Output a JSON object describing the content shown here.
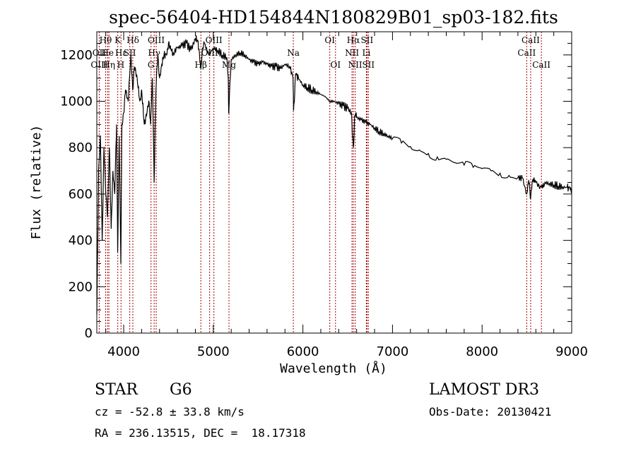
{
  "chart_data": {
    "type": "line",
    "title": "spec-56404-HD154844N180829B01_sp03-182.fits",
    "xlabel": "Wavelength (Å)",
    "ylabel": "Flux (relative)",
    "xlim": [
      3700,
      9000
    ],
    "ylim": [
      0,
      1300
    ],
    "xticks": [
      4000,
      5000,
      6000,
      7000,
      8000,
      9000
    ],
    "yticks": [
      0,
      200,
      400,
      600,
      800,
      1000,
      1200
    ],
    "grid": false,
    "series": [
      {
        "name": "spectrum",
        "x": [
          3700,
          3720,
          3740,
          3760,
          3780,
          3800,
          3820,
          3840,
          3860,
          3880,
          3900,
          3920,
          3933,
          3950,
          3968,
          3980,
          4000,
          4020,
          4050,
          4080,
          4101,
          4120,
          4150,
          4180,
          4200,
          4230,
          4260,
          4280,
          4300,
          4320,
          4340,
          4360,
          4380,
          4400,
          4420,
          4450,
          4480,
          4500,
          4530,
          4560,
          4600,
          4650,
          4700,
          4750,
          4800,
          4830,
          4861,
          4880,
          4900,
          4950,
          5000,
          5050,
          5100,
          5150,
          5167,
          5172,
          5183,
          5200,
          5250,
          5300,
          5350,
          5400,
          5450,
          5500,
          5550,
          5600,
          5650,
          5700,
          5750,
          5800,
          5850,
          5890,
          5896,
          5920,
          5950,
          6000,
          6050,
          6100,
          6150,
          6200,
          6250,
          6300,
          6350,
          6400,
          6450,
          6500,
          6540,
          6563,
          6580,
          6600,
          6650,
          6700,
          6750,
          6800,
          6850,
          6900,
          6950,
          7000,
          7100,
          7200,
          7300,
          7400,
          7500,
          7600,
          7700,
          7800,
          7900,
          8000,
          8100,
          8200,
          8300,
          8400,
          8450,
          8498,
          8520,
          8542,
          8560,
          8600,
          8662,
          8700,
          8750,
          8800,
          8850,
          8900,
          8950,
          8980,
          9000
        ],
        "values": [
          80,
          700,
          850,
          400,
          800,
          600,
          500,
          800,
          450,
          700,
          600,
          900,
          350,
          850,
          300,
          900,
          950,
          1050,
          1000,
          1200,
          1050,
          1150,
          1100,
          1000,
          1050,
          900,
          950,
          1000,
          900,
          1100,
          650,
          1050,
          1200,
          1100,
          1150,
          1200,
          1200,
          1250,
          1220,
          1200,
          1230,
          1240,
          1250,
          1220,
          1270,
          1260,
          1140,
          1230,
          1250,
          1200,
          1230,
          1220,
          1200,
          1190,
          1100,
          950,
          1050,
          1180,
          1200,
          1210,
          1200,
          1180,
          1170,
          1160,
          1170,
          1160,
          1150,
          1150,
          1140,
          1160,
          1150,
          1100,
          960,
          1120,
          1100,
          1070,
          1060,
          1050,
          1040,
          1030,
          1020,
          1000,
          1000,
          990,
          980,
          970,
          950,
          800,
          940,
          930,
          920,
          910,
          900,
          885,
          870,
          860,
          850,
          840,
          820,
          805,
          790,
          775,
          760,
          750,
          735,
          725,
          715,
          710,
          700,
          690,
          680,
          670,
          668,
          600,
          660,
          580,
          655,
          650,
          630,
          650,
          645,
          640,
          635,
          630,
          628,
          625,
          620
        ]
      }
    ],
    "lines": [
      {
        "label": "Hθ",
        "x": 3798,
        "row": 0
      },
      {
        "label": "OII",
        "x": 3727,
        "row": 1
      },
      {
        "label": "OIII",
        "x": 3727,
        "row": 2
      },
      {
        "label": "He",
        "x": 3820,
        "row": 1
      },
      {
        "label": "Hη",
        "x": 3835,
        "row": 2
      },
      {
        "label": "K",
        "x": 3934,
        "row": 0
      },
      {
        "label": "Hε",
        "x": 3970,
        "row": 1
      },
      {
        "label": "H",
        "x": 3968,
        "row": 2
      },
      {
        "label": "SII",
        "x": 4068,
        "row": 1
      },
      {
        "label": "Hδ",
        "x": 4102,
        "row": 0
      },
      {
        "label": "OIII",
        "x": 4363,
        "row": 0
      },
      {
        "label": "Hγ",
        "x": 4340,
        "row": 1
      },
      {
        "label": "G",
        "x": 4305,
        "row": 2
      },
      {
        "label": "OIII",
        "x": 5007,
        "row": 0
      },
      {
        "label": "OIII",
        "x": 4959,
        "row": 1
      },
      {
        "label": "Hβ",
        "x": 4861,
        "row": 2
      },
      {
        "label": "Mg",
        "x": 5175,
        "row": 2
      },
      {
        "label": "Na",
        "x": 5893,
        "row": 1
      },
      {
        "label": "OI",
        "x": 6300,
        "row": 0
      },
      {
        "label": "OI",
        "x": 6364,
        "row": 2
      },
      {
        "label": "Hα",
        "x": 6563,
        "row": 0
      },
      {
        "label": "NII",
        "x": 6548,
        "row": 1
      },
      {
        "label": "NII",
        "x": 6584,
        "row": 2
      },
      {
        "label": "SII",
        "x": 6716,
        "row": 0
      },
      {
        "label": "Li",
        "x": 6708,
        "row": 1
      },
      {
        "label": "SII",
        "x": 6731,
        "row": 2
      },
      {
        "label": "CaII",
        "x": 8542,
        "row": 0
      },
      {
        "label": "CaII",
        "x": 8498,
        "row": 1
      },
      {
        "label": "CaII",
        "x": 8662,
        "row": 2
      }
    ]
  },
  "info": {
    "object_type": "STAR",
    "subclass": "G6",
    "survey": "LAMOST DR3",
    "velocity": "cz = -52.8 ± 33.8 km/s",
    "obs_date": "Obs-Date: 20130421",
    "coords": "RA = 236.13515, DEC =  18.17318"
  }
}
